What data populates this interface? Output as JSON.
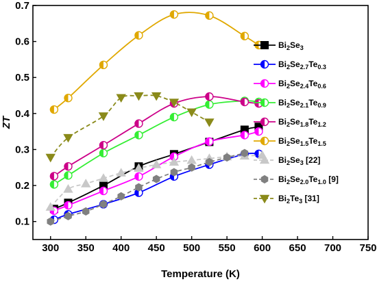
{
  "chart_data": {
    "type": "line",
    "xlabel": "Temperature (K)",
    "ylabel": "ZT",
    "xlim": [
      275,
      750
    ],
    "ylim": [
      0.05,
      0.7
    ],
    "xticks": [
      "300",
      "350",
      "400",
      "450",
      "500",
      "550",
      "600",
      "650",
      "700",
      "750"
    ],
    "yticks": [
      "0.1",
      "0.2",
      "0.3",
      "0.4",
      "0.5",
      "0.6",
      "0.7"
    ],
    "legend_position": "right",
    "series": [
      {
        "name": "Bi2Se3",
        "label_parts": [
          [
            "Bi",
            ""
          ],
          [
            "2",
            "sub"
          ],
          [
            "Se",
            ""
          ],
          [
            "3",
            "sub"
          ]
        ],
        "color": "#000000",
        "marker": "square",
        "fill": "full",
        "dash": "solid",
        "x": [
          305,
          325,
          375,
          425,
          475,
          525,
          575,
          595
        ],
        "y": [
          0.135,
          0.152,
          0.2,
          0.253,
          0.287,
          0.321,
          0.355,
          0.363
        ]
      },
      {
        "name": "Bi2Se2.7Te0.3",
        "label_parts": [
          [
            "Bi",
            ""
          ],
          [
            "2",
            "sub"
          ],
          [
            "Se",
            ""
          ],
          [
            "2.7",
            "sub"
          ],
          [
            "Te",
            ""
          ],
          [
            "0.3",
            "sub"
          ]
        ],
        "color": "#0000ff",
        "marker": "circle",
        "fill": "half",
        "dash": "solid",
        "x": [
          305,
          325,
          375,
          425,
          475,
          525,
          575,
          595
        ],
        "y": [
          0.105,
          0.12,
          0.148,
          0.18,
          0.225,
          0.258,
          0.287,
          0.288
        ]
      },
      {
        "name": "Bi2Se2.4Te0.6",
        "label_parts": [
          [
            "Bi",
            ""
          ],
          [
            "2",
            "sub"
          ],
          [
            "Se",
            ""
          ],
          [
            "2.4",
            "sub"
          ],
          [
            "Te",
            ""
          ],
          [
            "0.6",
            "sub"
          ]
        ],
        "color": "#ff00ff",
        "marker": "circle",
        "fill": "half",
        "dash": "solid",
        "x": [
          305,
          325,
          375,
          425,
          475,
          525,
          575,
          595
        ],
        "y": [
          0.13,
          0.145,
          0.185,
          0.225,
          0.28,
          0.322,
          0.34,
          0.35
        ]
      },
      {
        "name": "Bi2Se2.1Te0.9",
        "label_parts": [
          [
            "Bi",
            ""
          ],
          [
            "2",
            "sub"
          ],
          [
            "Se",
            ""
          ],
          [
            "2.1",
            "sub"
          ],
          [
            "Te",
            ""
          ],
          [
            "0.9",
            "sub"
          ]
        ],
        "color": "#33ee33",
        "marker": "circle",
        "fill": "half",
        "dash": "solid",
        "x": [
          305,
          325,
          375,
          425,
          475,
          525,
          575,
          595
        ],
        "y": [
          0.203,
          0.228,
          0.29,
          0.34,
          0.39,
          0.425,
          0.435,
          0.432
        ]
      },
      {
        "name": "Bi2Se1.8Te1.2",
        "label_parts": [
          [
            "Bi",
            ""
          ],
          [
            "2",
            "sub"
          ],
          [
            "Se",
            ""
          ],
          [
            "1.8",
            "sub"
          ],
          [
            "Te",
            ""
          ],
          [
            "1.2",
            "sub"
          ]
        ],
        "color": "#cc0088",
        "marker": "circle",
        "fill": "half",
        "dash": "solid",
        "x": [
          305,
          325,
          375,
          425,
          475,
          525,
          575,
          595
        ],
        "y": [
          0.226,
          0.253,
          0.312,
          0.372,
          0.428,
          0.447,
          0.432,
          0.428
        ]
      },
      {
        "name": "Bi2Se1.5Te1.5",
        "label_parts": [
          [
            "Bi",
            ""
          ],
          [
            "2",
            "sub"
          ],
          [
            "Se",
            ""
          ],
          [
            "1.5",
            "sub"
          ],
          [
            "Te",
            ""
          ],
          [
            "1.5",
            "sub"
          ]
        ],
        "color": "#e0a800",
        "marker": "circle",
        "fill": "half",
        "dash": "solid",
        "x": [
          305,
          325,
          375,
          425,
          475,
          525,
          575,
          595
        ],
        "y": [
          0.411,
          0.443,
          0.535,
          0.617,
          0.675,
          0.672,
          0.615,
          0.59
        ]
      },
      {
        "name": "Bi2Se3 [22]",
        "label_parts": [
          [
            "Bi",
            ""
          ],
          [
            "2",
            "sub"
          ],
          [
            "Se",
            ""
          ],
          [
            "3",
            "sub"
          ],
          [
            " [22]",
            ""
          ]
        ],
        "color": "#c8c8c8",
        "marker": "triangle-up",
        "fill": "full",
        "dash": "dash",
        "x": [
          300,
          325,
          350,
          375,
          400,
          425,
          450,
          475,
          500,
          525,
          550,
          575,
          600
        ],
        "y": [
          0.14,
          0.19,
          0.205,
          0.22,
          0.235,
          0.248,
          0.258,
          0.265,
          0.27,
          0.275,
          0.28,
          0.282,
          0.284
        ]
      },
      {
        "name": "Bi2Se2.0Te1.0 [9]",
        "label_parts": [
          [
            "Bi",
            ""
          ],
          [
            "2",
            "sub"
          ],
          [
            "Se",
            ""
          ],
          [
            "2.0",
            "sub"
          ],
          [
            "Te",
            ""
          ],
          [
            "1.0",
            "sub"
          ],
          [
            " [9]",
            ""
          ]
        ],
        "color": "#808080",
        "marker": "hexagon",
        "fill": "full",
        "dash": "dash",
        "x": [
          300,
          325,
          350,
          375,
          400,
          425,
          450,
          475,
          500,
          525,
          550,
          575
        ],
        "y": [
          0.1,
          0.115,
          0.128,
          0.148,
          0.17,
          0.195,
          0.218,
          0.237,
          0.25,
          0.265,
          0.278,
          0.29
        ]
      },
      {
        "name": "Bi2Te3 [31]",
        "label_parts": [
          [
            "Bi",
            ""
          ],
          [
            "2",
            "sub"
          ],
          [
            "Te",
            ""
          ],
          [
            "3",
            "sub"
          ],
          [
            " [31]",
            ""
          ]
        ],
        "color": "#8a8a1a",
        "marker": "triangle-down",
        "fill": "full",
        "dash": "dash",
        "x": [
          300,
          325,
          375,
          400,
          425,
          450,
          475,
          500,
          525
        ],
        "y": [
          0.278,
          0.333,
          0.393,
          0.444,
          0.449,
          0.449,
          0.431,
          0.404,
          0.376
        ]
      }
    ]
  }
}
